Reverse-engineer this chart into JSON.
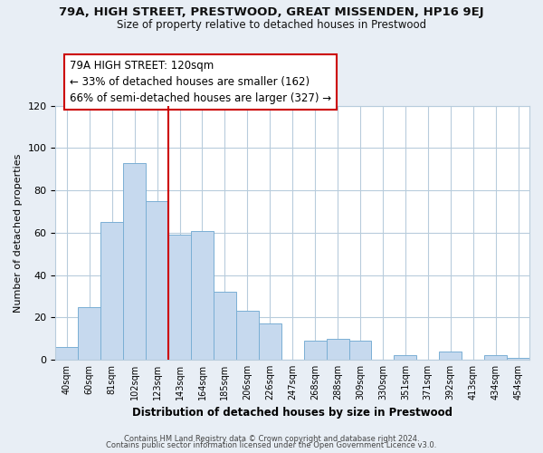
{
  "title": "79A, HIGH STREET, PRESTWOOD, GREAT MISSENDEN, HP16 9EJ",
  "subtitle": "Size of property relative to detached houses in Prestwood",
  "xlabel": "Distribution of detached houses by size in Prestwood",
  "ylabel": "Number of detached properties",
  "bar_labels": [
    "40sqm",
    "60sqm",
    "81sqm",
    "102sqm",
    "123sqm",
    "143sqm",
    "164sqm",
    "185sqm",
    "206sqm",
    "226sqm",
    "247sqm",
    "268sqm",
    "288sqm",
    "309sqm",
    "330sqm",
    "351sqm",
    "371sqm",
    "392sqm",
    "413sqm",
    "434sqm",
    "454sqm"
  ],
  "bar_values": [
    6,
    25,
    65,
    93,
    75,
    59,
    61,
    32,
    23,
    17,
    0,
    9,
    10,
    9,
    0,
    2,
    0,
    4,
    0,
    2,
    1
  ],
  "bar_color": "#c6d9ee",
  "bar_edge_color": "#7aafd4",
  "highlight_line_index": 4,
  "highlight_color": "#cc0000",
  "ylim": [
    0,
    120
  ],
  "yticks": [
    0,
    20,
    40,
    60,
    80,
    100,
    120
  ],
  "annotation_title": "79A HIGH STREET: 120sqm",
  "annotation_line1": "← 33% of detached houses are smaller (162)",
  "annotation_line2": "66% of semi-detached houses are larger (327) →",
  "footer1": "Contains HM Land Registry data © Crown copyright and database right 2024.",
  "footer2": "Contains public sector information licensed under the Open Government Licence v3.0.",
  "bg_color": "#e8eef5",
  "plot_bg_color": "#ffffff",
  "grid_color": "#b8ccdc"
}
